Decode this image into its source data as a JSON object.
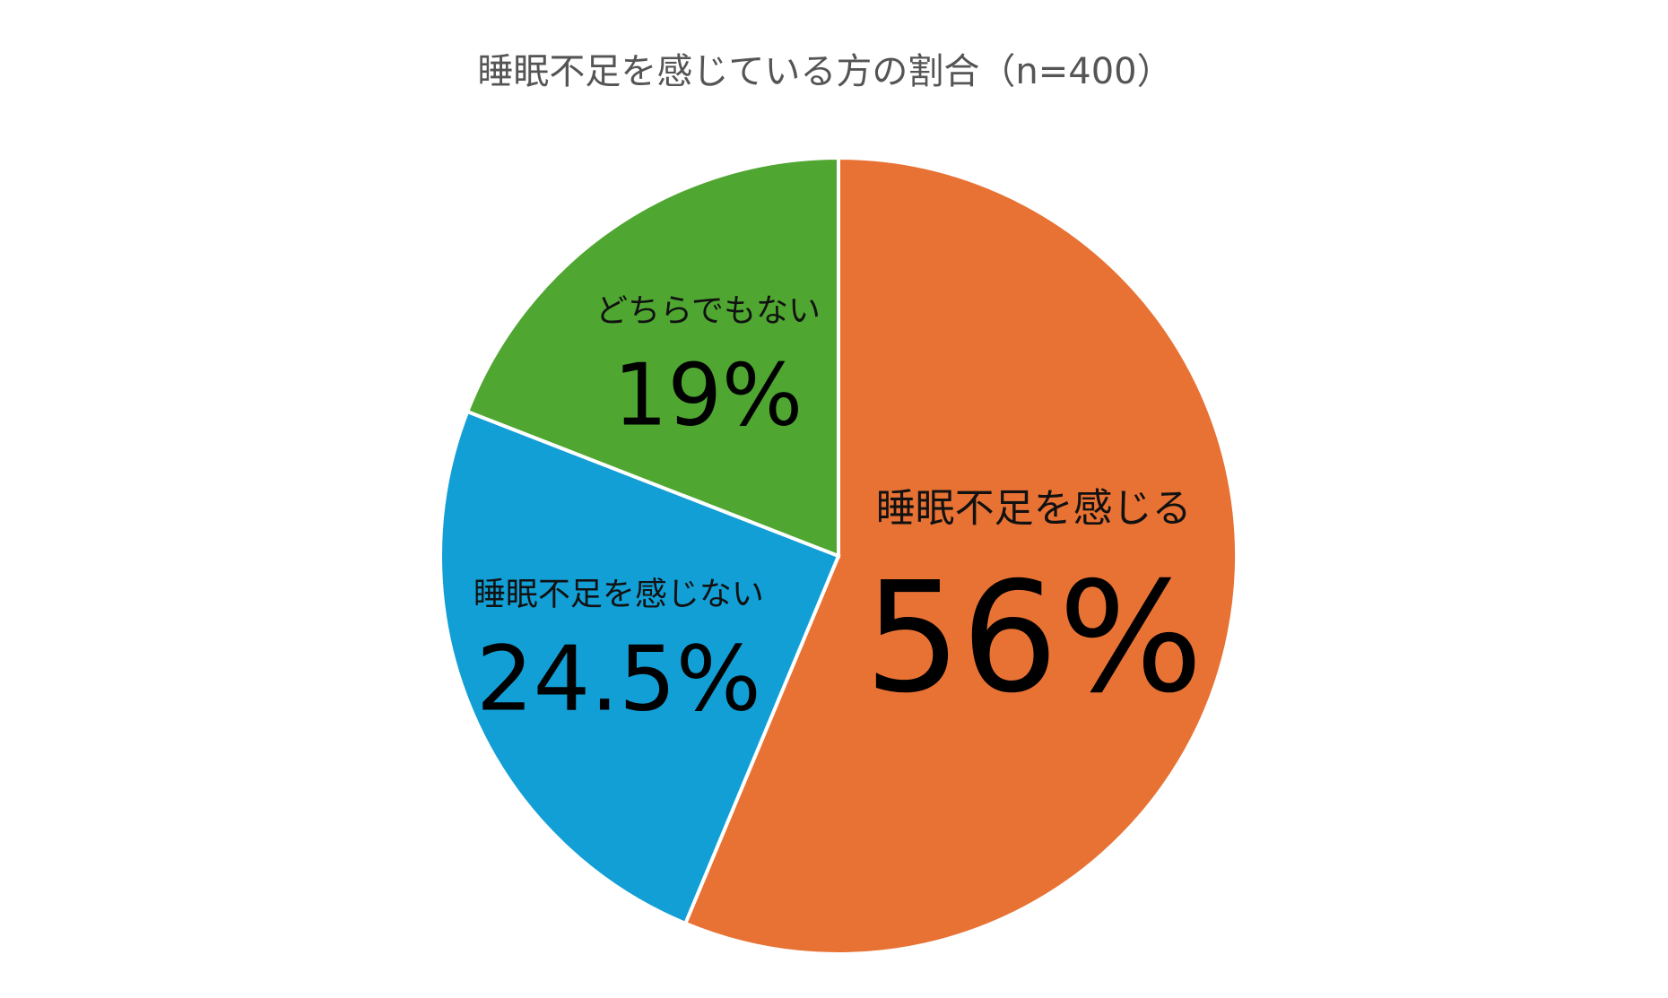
{
  "chart_data": {
    "type": "pie",
    "title": "睡眠不足を感じている方の割合（n=400）",
    "categories": [
      "睡眠不足を感じる",
      "睡眠不足を感じない",
      "どちらでもない"
    ],
    "values": [
      56,
      24.5,
      19
    ],
    "value_labels": [
      "56%",
      "24.5%",
      "19%"
    ],
    "colors": [
      "#e87234",
      "#129fd6",
      "#4fa631"
    ]
  }
}
